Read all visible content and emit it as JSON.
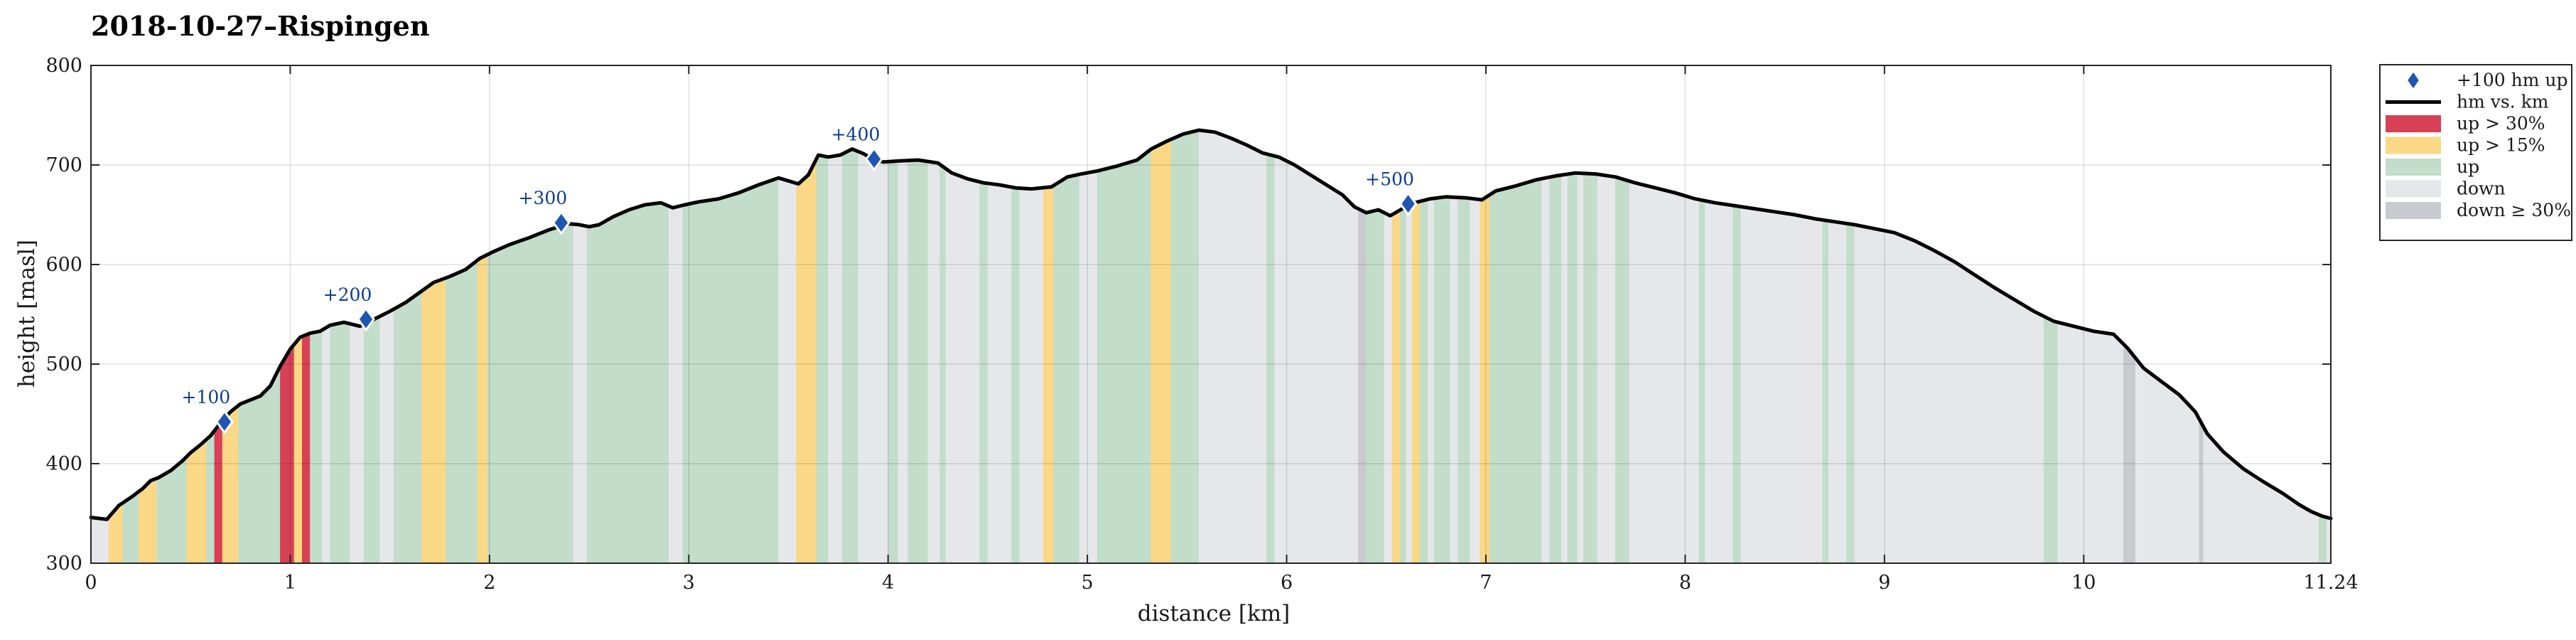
{
  "chart_data": {
    "type": "area",
    "title": "2018-10-27–Rispingen",
    "xlabel": "distance [km]",
    "ylabel": "height [masl]",
    "xlim": [
      0,
      11.24
    ],
    "ylim": [
      300,
      800
    ],
    "xticks": [
      "0",
      "1",
      "2",
      "3",
      "4",
      "5",
      "6",
      "7",
      "8",
      "9",
      "10",
      "11.24"
    ],
    "xtick_values": [
      0,
      1,
      2,
      3,
      4,
      5,
      6,
      7,
      8,
      9,
      10,
      11.24
    ],
    "yticks": [
      "300",
      "400",
      "500",
      "600",
      "700",
      "800"
    ],
    "ytick_values": [
      300,
      400,
      500,
      600,
      700,
      800
    ],
    "grid": true,
    "legend_position": "outside-right-top",
    "colors": {
      "profile": "#000000",
      "marker": "#1f56b3",
      "marker_text": "#0b3d8f",
      "up_gt_30": "#d84155",
      "up_gt_15": "#fad885",
      "up": "#c2ddc9",
      "down": "#e6e7ea",
      "down_ge_30": "#c8cad0"
    },
    "legend": [
      {
        "key": "marker",
        "label": "+100 hm up"
      },
      {
        "key": "profile",
        "label": "hm vs. km"
      },
      {
        "key": "up_gt_30",
        "label": "up > 30%"
      },
      {
        "key": "up_gt_15",
        "label": "up > 15%"
      },
      {
        "key": "up",
        "label": "up"
      },
      {
        "key": "down",
        "label": "down"
      },
      {
        "key": "down_ge_30",
        "label": "down ≥ 30%"
      }
    ],
    "profile": {
      "x": [
        0,
        0.08,
        0.14,
        0.2,
        0.26,
        0.3,
        0.34,
        0.4,
        0.46,
        0.5,
        0.55,
        0.6,
        0.65,
        0.7,
        0.75,
        0.8,
        0.85,
        0.9,
        0.95,
        1.0,
        1.05,
        1.1,
        1.15,
        1.2,
        1.27,
        1.35,
        1.42,
        1.5,
        1.58,
        1.65,
        1.72,
        1.8,
        1.88,
        1.95,
        2.02,
        2.1,
        2.2,
        2.3,
        2.35,
        2.4,
        2.45,
        2.5,
        2.55,
        2.62,
        2.7,
        2.78,
        2.86,
        2.92,
        2.98,
        3.05,
        3.15,
        3.25,
        3.35,
        3.45,
        3.55,
        3.6,
        3.65,
        3.7,
        3.76,
        3.82,
        3.88,
        3.93,
        3.98,
        4.05,
        4.15,
        4.25,
        4.32,
        4.4,
        4.48,
        4.56,
        4.64,
        4.72,
        4.82,
        4.9,
        4.97,
        5.05,
        5.15,
        5.25,
        5.32,
        5.4,
        5.48,
        5.56,
        5.64,
        5.72,
        5.8,
        5.88,
        5.96,
        6.04,
        6.12,
        6.2,
        6.28,
        6.34,
        6.4,
        6.46,
        6.52,
        6.58,
        6.62,
        6.66,
        6.72,
        6.8,
        6.9,
        6.98,
        7.05,
        7.15,
        7.25,
        7.35,
        7.45,
        7.55,
        7.65,
        7.75,
        7.85,
        7.95,
        8.05,
        8.15,
        8.25,
        8.35,
        8.45,
        8.55,
        8.65,
        8.75,
        8.85,
        8.95,
        9.05,
        9.15,
        9.25,
        9.35,
        9.45,
        9.55,
        9.65,
        9.75,
        9.85,
        9.95,
        10.05,
        10.15,
        10.22,
        10.3,
        10.4,
        10.48,
        10.56,
        10.62,
        10.7,
        10.8,
        10.9,
        11.0,
        11.08,
        11.14,
        11.2,
        11.24
      ],
      "y": [
        346,
        344,
        358,
        366,
        375,
        383,
        386,
        393,
        403,
        411,
        419,
        428,
        441,
        452,
        460,
        464,
        468,
        478,
        498,
        515,
        527,
        531,
        533,
        539,
        542,
        538,
        545,
        553,
        562,
        572,
        582,
        588,
        595,
        606,
        613,
        620,
        627,
        635,
        638,
        641,
        640,
        638,
        640,
        648,
        655,
        660,
        662,
        657,
        660,
        663,
        666,
        672,
        680,
        687,
        681,
        690,
        710,
        708,
        710,
        716,
        711,
        705,
        703,
        704,
        705,
        702,
        692,
        686,
        682,
        680,
        677,
        676,
        678,
        688,
        691,
        694,
        699,
        705,
        716,
        724,
        731,
        735,
        733,
        727,
        720,
        712,
        708,
        700,
        690,
        680,
        670,
        658,
        652,
        655,
        649,
        656,
        661,
        663,
        666,
        668,
        667,
        665,
        674,
        679,
        685,
        689,
        692,
        691,
        688,
        682,
        677,
        672,
        666,
        662,
        659,
        656,
        653,
        650,
        646,
        643,
        640,
        636,
        632,
        624,
        614,
        603,
        590,
        577,
        565,
        553,
        543,
        538,
        533,
        530,
        516,
        496,
        481,
        469,
        452,
        430,
        412,
        395,
        382,
        370,
        359,
        352,
        347,
        345
      ]
    },
    "milestones": [
      {
        "x": 0.67,
        "y": 442,
        "label": "+100"
      },
      {
        "x": 1.38,
        "y": 545,
        "label": "+200"
      },
      {
        "x": 2.36,
        "y": 642,
        "label": "+300"
      },
      {
        "x": 3.93,
        "y": 706,
        "label": "+400"
      },
      {
        "x": 6.61,
        "y": 661,
        "label": "+500"
      }
    ],
    "segments": [
      {
        "from": 0.0,
        "to": 0.09,
        "type": "down"
      },
      {
        "from": 0.09,
        "to": 0.16,
        "type": "up_gt_15"
      },
      {
        "from": 0.16,
        "to": 0.24,
        "type": "up"
      },
      {
        "from": 0.24,
        "to": 0.33,
        "type": "up_gt_15"
      },
      {
        "from": 0.33,
        "to": 0.48,
        "type": "up"
      },
      {
        "from": 0.48,
        "to": 0.58,
        "type": "up_gt_15"
      },
      {
        "from": 0.58,
        "to": 0.62,
        "type": "up"
      },
      {
        "from": 0.62,
        "to": 0.66,
        "type": "up_gt_30"
      },
      {
        "from": 0.66,
        "to": 0.74,
        "type": "up_gt_15"
      },
      {
        "from": 0.74,
        "to": 0.95,
        "type": "up"
      },
      {
        "from": 0.95,
        "to": 1.02,
        "type": "up_gt_30"
      },
      {
        "from": 1.02,
        "to": 1.06,
        "type": "up_gt_15"
      },
      {
        "from": 1.06,
        "to": 1.1,
        "type": "up_gt_30"
      },
      {
        "from": 1.1,
        "to": 1.16,
        "type": "up"
      },
      {
        "from": 1.16,
        "to": 1.2,
        "type": "down"
      },
      {
        "from": 1.2,
        "to": 1.3,
        "type": "up"
      },
      {
        "from": 1.3,
        "to": 1.37,
        "type": "down"
      },
      {
        "from": 1.37,
        "to": 1.45,
        "type": "up"
      },
      {
        "from": 1.45,
        "to": 1.52,
        "type": "down"
      },
      {
        "from": 1.52,
        "to": 1.66,
        "type": "up"
      },
      {
        "from": 1.66,
        "to": 1.78,
        "type": "up_gt_15"
      },
      {
        "from": 1.78,
        "to": 1.94,
        "type": "up"
      },
      {
        "from": 1.94,
        "to": 1.99,
        "type": "up_gt_15"
      },
      {
        "from": 1.99,
        "to": 2.42,
        "type": "up"
      },
      {
        "from": 2.42,
        "to": 2.49,
        "type": "down"
      },
      {
        "from": 2.49,
        "to": 2.9,
        "type": "up"
      },
      {
        "from": 2.9,
        "to": 2.97,
        "type": "down"
      },
      {
        "from": 2.97,
        "to": 3.45,
        "type": "up"
      },
      {
        "from": 3.45,
        "to": 3.54,
        "type": "down"
      },
      {
        "from": 3.54,
        "to": 3.64,
        "type": "up_gt_15"
      },
      {
        "from": 3.64,
        "to": 3.7,
        "type": "up"
      },
      {
        "from": 3.7,
        "to": 3.77,
        "type": "down"
      },
      {
        "from": 3.77,
        "to": 3.85,
        "type": "up"
      },
      {
        "from": 3.85,
        "to": 4.0,
        "type": "down"
      },
      {
        "from": 4.0,
        "to": 4.05,
        "type": "up"
      },
      {
        "from": 4.05,
        "to": 4.1,
        "type": "down"
      },
      {
        "from": 4.1,
        "to": 4.2,
        "type": "up"
      },
      {
        "from": 4.2,
        "to": 4.26,
        "type": "down"
      },
      {
        "from": 4.26,
        "to": 4.29,
        "type": "up"
      },
      {
        "from": 4.29,
        "to": 4.46,
        "type": "down"
      },
      {
        "from": 4.46,
        "to": 4.5,
        "type": "up"
      },
      {
        "from": 4.5,
        "to": 4.62,
        "type": "down"
      },
      {
        "from": 4.62,
        "to": 4.66,
        "type": "up"
      },
      {
        "from": 4.66,
        "to": 4.78,
        "type": "down"
      },
      {
        "from": 4.78,
        "to": 4.83,
        "type": "up_gt_15"
      },
      {
        "from": 4.83,
        "to": 4.96,
        "type": "up"
      },
      {
        "from": 4.96,
        "to": 5.05,
        "type": "down"
      },
      {
        "from": 5.05,
        "to": 5.32,
        "type": "up"
      },
      {
        "from": 5.32,
        "to": 5.42,
        "type": "up_gt_15"
      },
      {
        "from": 5.42,
        "to": 5.56,
        "type": "up"
      },
      {
        "from": 5.56,
        "to": 5.9,
        "type": "down"
      },
      {
        "from": 5.9,
        "to": 5.94,
        "type": "up"
      },
      {
        "from": 5.94,
        "to": 6.36,
        "type": "down"
      },
      {
        "from": 6.36,
        "to": 6.4,
        "type": "down_ge_30"
      },
      {
        "from": 6.4,
        "to": 6.49,
        "type": "up"
      },
      {
        "from": 6.49,
        "to": 6.53,
        "type": "down"
      },
      {
        "from": 6.53,
        "to": 6.57,
        "type": "up_gt_15"
      },
      {
        "from": 6.57,
        "to": 6.6,
        "type": "up"
      },
      {
        "from": 6.6,
        "to": 6.63,
        "type": "down"
      },
      {
        "from": 6.63,
        "to": 6.67,
        "type": "up_gt_15"
      },
      {
        "from": 6.67,
        "to": 6.71,
        "type": "up"
      },
      {
        "from": 6.71,
        "to": 6.74,
        "type": "down"
      },
      {
        "from": 6.74,
        "to": 6.82,
        "type": "up"
      },
      {
        "from": 6.82,
        "to": 6.86,
        "type": "down"
      },
      {
        "from": 6.86,
        "to": 6.92,
        "type": "up"
      },
      {
        "from": 6.92,
        "to": 6.97,
        "type": "down"
      },
      {
        "from": 6.97,
        "to": 7.02,
        "type": "up_gt_15"
      },
      {
        "from": 7.02,
        "to": 7.28,
        "type": "up"
      },
      {
        "from": 7.28,
        "to": 7.32,
        "type": "down"
      },
      {
        "from": 7.32,
        "to": 7.38,
        "type": "up"
      },
      {
        "from": 7.38,
        "to": 7.41,
        "type": "down"
      },
      {
        "from": 7.41,
        "to": 7.46,
        "type": "up"
      },
      {
        "from": 7.46,
        "to": 7.49,
        "type": "down"
      },
      {
        "from": 7.49,
        "to": 7.56,
        "type": "up"
      },
      {
        "from": 7.56,
        "to": 7.65,
        "type": "down"
      },
      {
        "from": 7.65,
        "to": 7.72,
        "type": "up"
      },
      {
        "from": 7.72,
        "to": 8.07,
        "type": "down"
      },
      {
        "from": 8.07,
        "to": 8.1,
        "type": "up"
      },
      {
        "from": 8.1,
        "to": 8.24,
        "type": "down"
      },
      {
        "from": 8.24,
        "to": 8.28,
        "type": "up"
      },
      {
        "from": 8.28,
        "to": 8.69,
        "type": "down"
      },
      {
        "from": 8.69,
        "to": 8.72,
        "type": "up"
      },
      {
        "from": 8.72,
        "to": 8.81,
        "type": "down"
      },
      {
        "from": 8.81,
        "to": 8.85,
        "type": "up"
      },
      {
        "from": 8.85,
        "to": 9.8,
        "type": "down"
      },
      {
        "from": 9.8,
        "to": 9.87,
        "type": "up"
      },
      {
        "from": 9.87,
        "to": 10.2,
        "type": "down"
      },
      {
        "from": 10.2,
        "to": 10.26,
        "type": "down_ge_30"
      },
      {
        "from": 10.26,
        "to": 10.58,
        "type": "down"
      },
      {
        "from": 10.58,
        "to": 10.6,
        "type": "down_ge_30"
      },
      {
        "from": 10.6,
        "to": 11.18,
        "type": "down"
      },
      {
        "from": 11.18,
        "to": 11.22,
        "type": "up"
      },
      {
        "from": 11.22,
        "to": 11.24,
        "type": "down"
      }
    ]
  }
}
